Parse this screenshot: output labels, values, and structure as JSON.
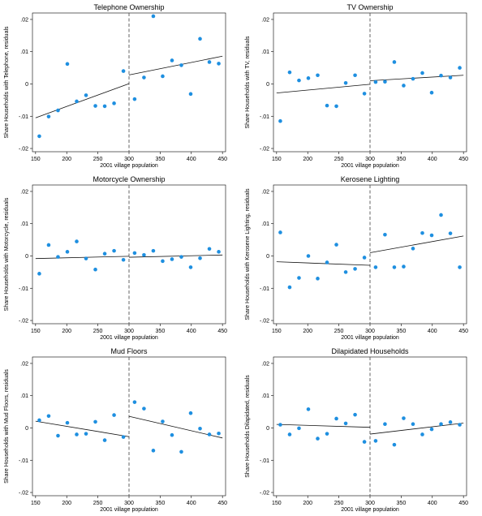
{
  "chart_data": [
    {
      "type": "scatter",
      "title": "Telephone Ownership",
      "xlabel": "2001 village population",
      "ylabel": "Share Households with Telephone, residuals",
      "xlim": [
        145,
        455
      ],
      "ylim": [
        -0.021,
        0.022
      ],
      "xticks": [
        "150",
        "200",
        "250",
        "300",
        "350",
        "400",
        "450"
      ],
      "yticks": [
        ".02",
        ".01",
        "0",
        "-.01",
        "-.02"
      ],
      "cutoff": 300,
      "points": [
        [
          156,
          -0.0162
        ],
        [
          171,
          -0.0101
        ],
        [
          186,
          -0.0082
        ],
        [
          201,
          0.0062
        ],
        [
          216,
          -0.0054
        ],
        [
          231,
          -0.0035
        ],
        [
          246,
          -0.0068
        ],
        [
          261,
          -0.0069
        ],
        [
          276,
          -0.006
        ],
        [
          291,
          0.004
        ],
        [
          309,
          -0.0047
        ],
        [
          324,
          0.002
        ],
        [
          339,
          0.021
        ],
        [
          354,
          0.0024
        ],
        [
          369,
          0.0073
        ],
        [
          384,
          0.0058
        ],
        [
          399,
          -0.0031
        ],
        [
          414,
          0.014
        ],
        [
          429,
          0.0068
        ],
        [
          444,
          0.0063
        ]
      ],
      "fit_left": [
        [
          150,
          -0.0105
        ],
        [
          300,
          0.0001
        ]
      ],
      "fit_right": [
        [
          300,
          0.0028
        ],
        [
          450,
          0.0086
        ]
      ]
    },
    {
      "type": "scatter",
      "title": "TV Ownership",
      "xlabel": "2001 village population",
      "ylabel": "Share Households with TV, residuals",
      "xlim": [
        145,
        455
      ],
      "ylim": [
        -0.021,
        0.022
      ],
      "xticks": [
        "150",
        "200",
        "250",
        "300",
        "350",
        "400",
        "450"
      ],
      "yticks": [
        ".02",
        ".01",
        "0",
        "-.01",
        "-.02"
      ],
      "cutoff": 300,
      "points": [
        [
          156,
          -0.0115
        ],
        [
          171,
          0.0036
        ],
        [
          186,
          0.0011
        ],
        [
          201,
          0.0018
        ],
        [
          216,
          0.0027
        ],
        [
          231,
          -0.0067
        ],
        [
          246,
          -0.0069
        ],
        [
          261,
          0.0003
        ],
        [
          276,
          0.0027
        ],
        [
          291,
          -0.003
        ],
        [
          309,
          0.0006
        ],
        [
          324,
          0.0007
        ],
        [
          339,
          0.0068
        ],
        [
          354,
          -0.0005
        ],
        [
          369,
          0.0016
        ],
        [
          384,
          0.0034
        ],
        [
          399,
          -0.0027
        ],
        [
          414,
          0.0026
        ],
        [
          429,
          0.002
        ],
        [
          444,
          0.005
        ]
      ],
      "fit_left": [
        [
          150,
          -0.0028
        ],
        [
          300,
          -0.0001
        ]
      ],
      "fit_right": [
        [
          300,
          0.001
        ],
        [
          450,
          0.0027
        ]
      ]
    },
    {
      "type": "scatter",
      "title": "Motorcycle Ownership",
      "xlabel": "2001 village population",
      "ylabel": "Share Households with Motorcycle, residuals",
      "xlim": [
        145,
        455
      ],
      "ylim": [
        -0.021,
        0.022
      ],
      "xticks": [
        "150",
        "200",
        "250",
        "300",
        "350",
        "400",
        "450"
      ],
      "yticks": [
        ".02",
        ".01",
        "0",
        "-.01",
        "-.02"
      ],
      "cutoff": 300,
      "points": [
        [
          156,
          -0.0055
        ],
        [
          171,
          0.0034
        ],
        [
          186,
          -0.0003
        ],
        [
          201,
          0.0013
        ],
        [
          216,
          0.0045
        ],
        [
          231,
          -0.0008
        ],
        [
          246,
          -0.0042
        ],
        [
          261,
          0.0007
        ],
        [
          276,
          0.0016
        ],
        [
          291,
          -0.0012
        ],
        [
          309,
          0.0009
        ],
        [
          324,
          0.0003
        ],
        [
          339,
          0.0016
        ],
        [
          354,
          -0.0016
        ],
        [
          369,
          -0.001
        ],
        [
          384,
          -0.0003
        ],
        [
          399,
          -0.0035
        ],
        [
          414,
          -0.0007
        ],
        [
          429,
          0.0022
        ],
        [
          444,
          0.0013
        ]
      ],
      "fit_left": [
        [
          150,
          -0.0008
        ],
        [
          300,
          -0.0001
        ]
      ],
      "fit_right": [
        [
          300,
          -0.0004
        ],
        [
          450,
          0.0003
        ]
      ]
    },
    {
      "type": "scatter",
      "title": "Kerosene Lighting",
      "xlabel": "2001 village population",
      "ylabel": "Share Households with Kerosene Lighting, residuals",
      "xlim": [
        145,
        455
      ],
      "ylim": [
        -0.021,
        0.022
      ],
      "xticks": [
        "150",
        "200",
        "250",
        "300",
        "350",
        "400",
        "450"
      ],
      "yticks": [
        ".02",
        ".01",
        "0",
        "-.01",
        "-.02"
      ],
      "cutoff": 300,
      "points": [
        [
          156,
          0.0073
        ],
        [
          171,
          -0.0097
        ],
        [
          186,
          -0.0068
        ],
        [
          201,
          0.0
        ],
        [
          216,
          -0.007
        ],
        [
          231,
          -0.002
        ],
        [
          246,
          0.0035
        ],
        [
          261,
          -0.005
        ],
        [
          276,
          -0.004
        ],
        [
          291,
          -0.0005
        ],
        [
          309,
          -0.0035
        ],
        [
          324,
          0.0066
        ],
        [
          339,
          -0.0035
        ],
        [
          354,
          -0.0033
        ],
        [
          369,
          0.0023
        ],
        [
          384,
          0.0071
        ],
        [
          399,
          0.0064
        ],
        [
          414,
          0.0127
        ],
        [
          429,
          0.007
        ],
        [
          444,
          -0.0035
        ]
      ],
      "fit_left": [
        [
          150,
          -0.0018
        ],
        [
          300,
          -0.0029
        ]
      ],
      "fit_right": [
        [
          300,
          0.001
        ],
        [
          450,
          0.0062
        ]
      ]
    },
    {
      "type": "scatter",
      "title": "Mud Floors",
      "xlabel": "2001 village population",
      "ylabel": "Share Households with Mud Floors, residuals",
      "xlim": [
        145,
        455
      ],
      "ylim": [
        -0.021,
        0.022
      ],
      "xticks": [
        "150",
        "200",
        "250",
        "300",
        "350",
        "400",
        "450"
      ],
      "yticks": [
        ".02",
        ".01",
        "0",
        "-.01",
        "-.02"
      ],
      "cutoff": 300,
      "points": [
        [
          156,
          0.0024
        ],
        [
          171,
          0.0037
        ],
        [
          186,
          -0.0024
        ],
        [
          201,
          0.0016
        ],
        [
          216,
          -0.002
        ],
        [
          231,
          -0.0018
        ],
        [
          246,
          0.0019
        ],
        [
          261,
          -0.0038
        ],
        [
          276,
          0.004
        ],
        [
          291,
          -0.0028
        ],
        [
          309,
          0.008
        ],
        [
          324,
          0.006
        ],
        [
          339,
          -0.007
        ],
        [
          354,
          0.002
        ],
        [
          369,
          -0.0022
        ],
        [
          384,
          -0.0074
        ],
        [
          399,
          0.0046
        ],
        [
          414,
          -0.0002
        ],
        [
          429,
          -0.002
        ],
        [
          444,
          -0.0017
        ]
      ],
      "fit_left": [
        [
          150,
          0.0021
        ],
        [
          300,
          -0.0027
        ]
      ],
      "fit_right": [
        [
          300,
          0.0036
        ],
        [
          450,
          -0.0031
        ]
      ]
    },
    {
      "type": "scatter",
      "title": "Dilapidated Households",
      "xlabel": "2001 village population",
      "ylabel": "Share Households Dilapidated, residuals",
      "xlim": [
        145,
        455
      ],
      "ylim": [
        -0.021,
        0.022
      ],
      "xticks": [
        "150",
        "200",
        "250",
        "300",
        "350",
        "400",
        "450"
      ],
      "yticks": [
        ".02",
        ".01",
        "0",
        "-.01",
        "-.02"
      ],
      "cutoff": 300,
      "points": [
        [
          156,
          0.001
        ],
        [
          171,
          -0.002
        ],
        [
          186,
          -0.0001
        ],
        [
          201,
          0.0058
        ],
        [
          216,
          -0.0033
        ],
        [
          231,
          -0.0018
        ],
        [
          246,
          0.0029
        ],
        [
          261,
          0.0014
        ],
        [
          276,
          0.0041
        ],
        [
          291,
          -0.0043
        ],
        [
          309,
          -0.004
        ],
        [
          324,
          0.0012
        ],
        [
          339,
          -0.0052
        ],
        [
          354,
          0.003
        ],
        [
          369,
          0.0012
        ],
        [
          384,
          -0.002
        ],
        [
          399,
          -0.0004
        ],
        [
          414,
          0.0012
        ],
        [
          429,
          0.0018
        ],
        [
          444,
          0.001
        ]
      ],
      "fit_left": [
        [
          150,
          0.0011
        ],
        [
          300,
          0.0002
        ]
      ],
      "fit_right": [
        [
          300,
          -0.0019
        ],
        [
          450,
          0.0015
        ]
      ]
    }
  ]
}
